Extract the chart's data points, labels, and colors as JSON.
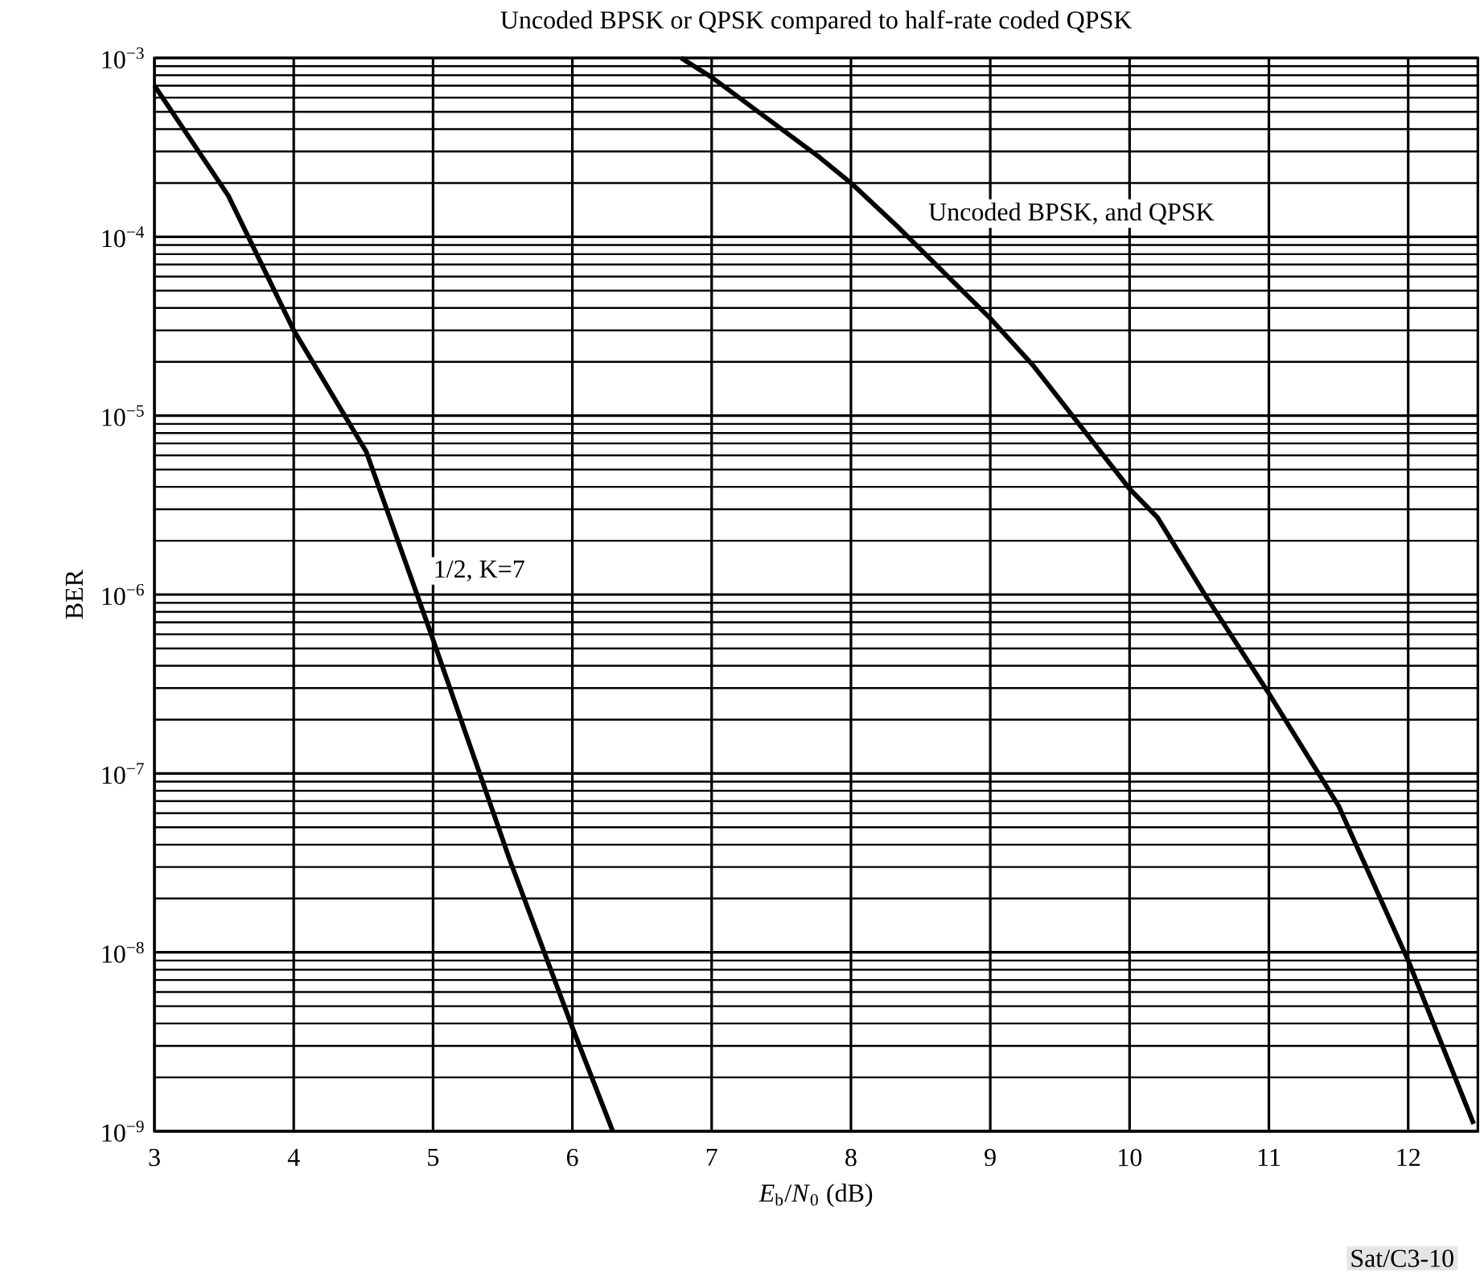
{
  "chart_data": {
    "type": "line",
    "title": "Uncoded BPSK or QPSK compared to half-rate coded QPSK",
    "xlabel": "*E*$_{b}$/*N*$_{0}$  (dB)",
    "ylabel": "BER",
    "log": "y",
    "grid": true,
    "xlim": [
      3,
      12.5
    ],
    "xticks": [
      3,
      4,
      5,
      6,
      7,
      8,
      9,
      10,
      11,
      12
    ],
    "ylim": [
      1e-09,
      0.001
    ],
    "yticks": [
      {
        "value": 1e-09,
        "label": "10$^{−9}$"
      },
      {
        "value": 1e-08,
        "label": "10$^{−8}$"
      },
      {
        "value": 1e-07,
        "label": "10$^{−7}$"
      },
      {
        "value": 1e-06,
        "label": "10$^{−6}$"
      },
      {
        "value": 1e-05,
        "label": "10$^{−5}$"
      },
      {
        "value": 0.0001,
        "label": "10$^{−4}$"
      },
      {
        "value": 0.001,
        "label": "10$^{−3}$"
      }
    ],
    "series": [
      {
        "color": "#000000",
        "x": [
          3,
          3.53,
          4,
          4.52,
          5,
          5.55,
          6,
          6.29
        ],
        "values": [
          0.0007,
          0.00017,
          3e-05,
          6.3e-06,
          5.6e-07,
          3.3e-08,
          3.8e-09,
          1e-09
        ]
      },
      {
        "color": "#000000",
        "x": [
          6.78,
          7,
          7.77,
          8,
          8.33,
          9,
          9.31,
          10,
          10.2,
          10.54,
          11,
          11.5,
          12,
          12.47
        ],
        "values": [
          0.001,
          0.00078,
          0.00028,
          0.0002,
          0.000115,
          3.5e-05,
          1.9e-05,
          3.9e-06,
          2.7e-06,
          1e-06,
          2.8e-07,
          6.6e-08,
          9e-09,
          1.1e-09
        ]
      }
    ],
    "annotations": [
      "Uncoded BPSK, and QPSK",
      "1/2, K=7",
      "Sat/C3-10"
    ]
  }
}
